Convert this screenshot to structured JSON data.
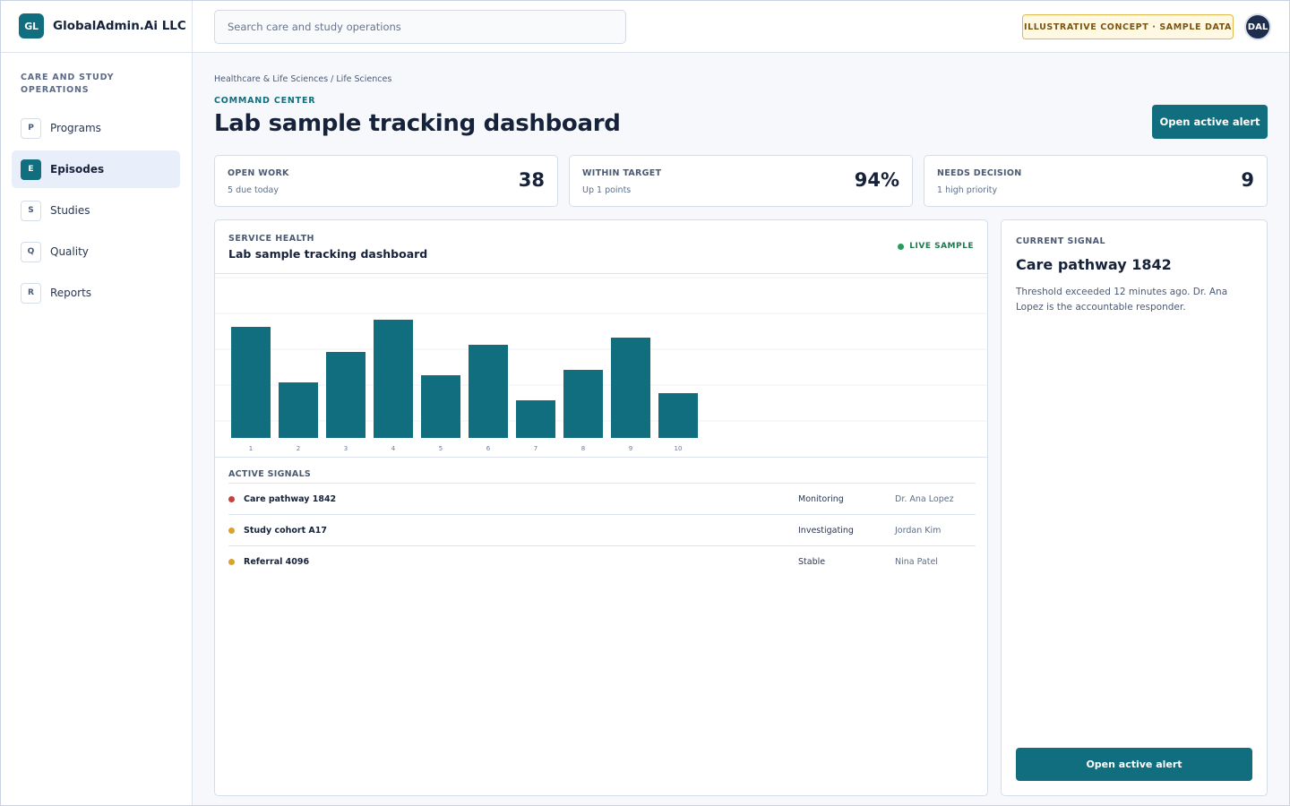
{
  "brand": {
    "logo": "GL",
    "name": "GlobalAdmin.Ai LLC"
  },
  "search": {
    "placeholder": "Search care and study operations"
  },
  "badge": {
    "concept": "ILLUSTRATIVE CONCEPT · SAMPLE DATA"
  },
  "user": {
    "initials": "DAL"
  },
  "sidebar": {
    "heading": "CARE AND STUDY OPERATIONS",
    "items": [
      {
        "badge": "P",
        "label": "Programs",
        "active": false
      },
      {
        "badge": "E",
        "label": "Episodes",
        "active": true
      },
      {
        "badge": "S",
        "label": "Studies",
        "active": false
      },
      {
        "badge": "Q",
        "label": "Quality",
        "active": false
      },
      {
        "badge": "R",
        "label": "Reports",
        "active": false
      }
    ]
  },
  "header": {
    "breadcrumb": "Healthcare & Life Sciences / Life Sciences",
    "eyebrow": "COMMAND CENTER",
    "title": "Lab sample tracking dashboard",
    "action_label": "Open active alert"
  },
  "kpis": [
    {
      "label": "OPEN WORK",
      "sub": "5 due today",
      "value": "38"
    },
    {
      "label": "WITHIN TARGET",
      "sub": "Up 1 points",
      "value": "94%"
    },
    {
      "label": "NEEDS DECISION",
      "sub": "1 high priority",
      "value": "9"
    }
  ],
  "panel": {
    "eyebrow": "SERVICE HEALTH",
    "title": "Lab sample tracking dashboard",
    "live_label": "LIVE SAMPLE",
    "signals_heading": "ACTIVE SIGNALS"
  },
  "chart_data": {
    "type": "bar",
    "categories": [
      "1",
      "2",
      "3",
      "4",
      "5",
      "6",
      "7",
      "8",
      "9",
      "10"
    ],
    "values": [
      62,
      31,
      48,
      66,
      35,
      52,
      21,
      38,
      56,
      25
    ],
    "ylim": [
      0,
      90
    ],
    "grid": true,
    "color": "#116e7e"
  },
  "signals": [
    {
      "name": "Care pathway 1842",
      "status": "Monitoring",
      "owner": "Dr. Ana Lopez",
      "color": "#c8413f"
    },
    {
      "name": "Study cohort A17",
      "status": "Investigating",
      "owner": "Jordan Kim",
      "color": "#d9a22b"
    },
    {
      "name": "Referral 4096",
      "status": "Stable",
      "owner": "Nina Patel",
      "color": "#d9a22b"
    }
  ],
  "current_signal": {
    "eyebrow": "CURRENT SIGNAL",
    "title": "Care pathway 1842",
    "body": "Threshold exceeded 12 minutes ago. Dr. Ana Lopez is the accountable responder.",
    "button_label": "Open active alert"
  }
}
